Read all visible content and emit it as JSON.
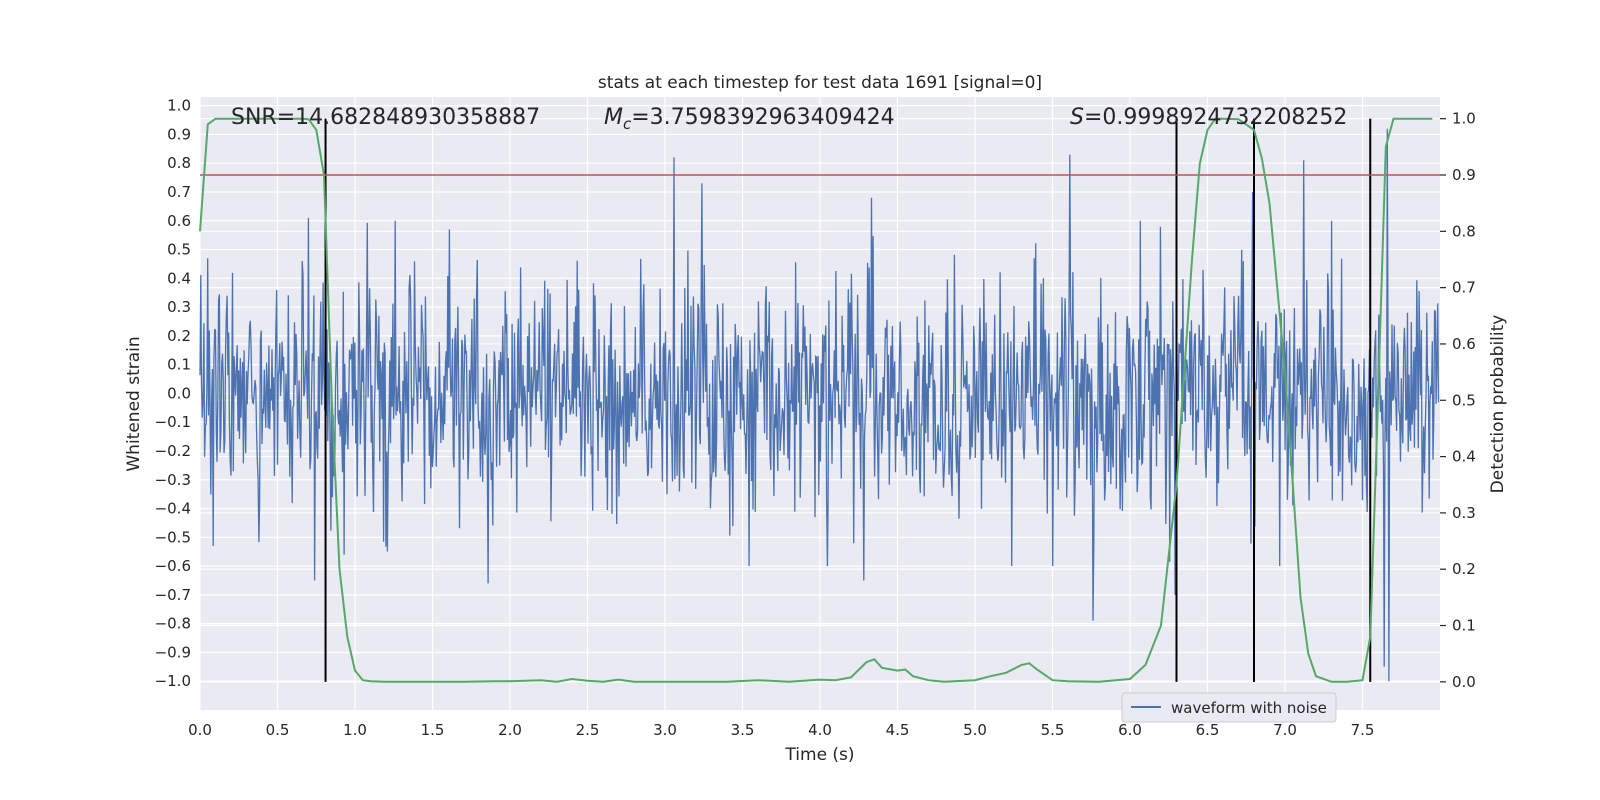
{
  "chart_data": {
    "type": "line",
    "title": "stats at each timestep for test data 1691 [signal=0]",
    "xlabel": "Time (s)",
    "ylabel_left": "Whitened strain",
    "ylabel_right": "Detection probability",
    "xlim": [
      0.0,
      8.0
    ],
    "ylim_left": [
      -1.1,
      1.03
    ],
    "ylim_right": [
      -0.05,
      1.0385
    ],
    "x_ticks": [
      "0.0",
      "0.5",
      "1.0",
      "1.5",
      "2.0",
      "2.5",
      "3.0",
      "3.5",
      "4.0",
      "4.5",
      "5.0",
      "5.5",
      "6.0",
      "6.5",
      "7.0",
      "7.5"
    ],
    "x_tick_values": [
      0.0,
      0.5,
      1.0,
      1.5,
      2.0,
      2.5,
      3.0,
      3.5,
      4.0,
      4.5,
      5.0,
      5.5,
      6.0,
      6.5,
      7.0,
      7.5
    ],
    "y_left_ticks": [
      "1.0",
      "0.9",
      "0.8",
      "0.7",
      "0.6",
      "0.5",
      "0.4",
      "0.3",
      "0.2",
      "0.1",
      "0.0",
      "−0.1",
      "−0.2",
      "−0.3",
      "−0.4",
      "−0.5",
      "−0.6",
      "−0.7",
      "−0.8",
      "−0.9",
      "−1.0"
    ],
    "y_left_tick_values": [
      1.0,
      0.9,
      0.8,
      0.7,
      0.6,
      0.5,
      0.4,
      0.3,
      0.2,
      0.1,
      0.0,
      -0.1,
      -0.2,
      -0.3,
      -0.4,
      -0.5,
      -0.6,
      -0.7,
      -0.8,
      -0.9,
      -1.0
    ],
    "y_right_ticks": [
      "1.0",
      "0.9",
      "0.8",
      "0.7",
      "0.6",
      "0.5",
      "0.4",
      "0.3",
      "0.2",
      "0.1",
      "0.0"
    ],
    "y_right_tick_values": [
      1.0,
      0.9,
      0.8,
      0.7,
      0.6,
      0.5,
      0.4,
      0.3,
      0.2,
      0.1,
      0.0
    ],
    "grid": true,
    "waveform": {
      "name": "waveform with noise",
      "color": "#4c72b0",
      "sample_count": 1600,
      "typical_amplitude": 0.35,
      "x_range": [
        0.0,
        7.99
      ],
      "peaks": [
        {
          "x": 0.05,
          "y": 0.47
        },
        {
          "x": 0.7,
          "y": 0.61
        },
        {
          "x": 0.74,
          "y": -0.65
        },
        {
          "x": 0.93,
          "y": -0.56
        },
        {
          "x": 1.61,
          "y": 0.57
        },
        {
          "x": 1.86,
          "y": -0.66
        },
        {
          "x": 3.06,
          "y": 0.82
        },
        {
          "x": 3.24,
          "y": 0.73
        },
        {
          "x": 4.33,
          "y": 0.68
        },
        {
          "x": 4.28,
          "y": -0.65
        },
        {
          "x": 5.61,
          "y": 0.83
        },
        {
          "x": 5.76,
          "y": -0.79
        },
        {
          "x": 6.29,
          "y": -0.7
        },
        {
          "x": 6.79,
          "y": 0.7
        },
        {
          "x": 7.12,
          "y": 0.81
        },
        {
          "x": 7.66,
          "y": 0.92
        },
        {
          "x": 7.64,
          "y": -0.95
        },
        {
          "x": 7.67,
          "y": -1.0
        }
      ]
    },
    "probability": {
      "color": "#55a868",
      "x": [
        0.0,
        0.05,
        0.1,
        0.2,
        0.3,
        0.4,
        0.5,
        0.6,
        0.65,
        0.7,
        0.75,
        0.8,
        0.85,
        0.9,
        0.95,
        1.0,
        1.05,
        1.1,
        1.2,
        1.3,
        1.5,
        1.7,
        1.9,
        2.0,
        2.2,
        2.3,
        2.4,
        2.5,
        2.6,
        2.7,
        2.8,
        2.9,
        3.0,
        3.2,
        3.4,
        3.6,
        3.8,
        4.0,
        4.1,
        4.2,
        4.3,
        4.35,
        4.4,
        4.5,
        4.55,
        4.6,
        4.7,
        4.8,
        5.0,
        5.1,
        5.2,
        5.3,
        5.35,
        5.4,
        5.5,
        5.6,
        5.8,
        6.0,
        6.1,
        6.2,
        6.3,
        6.4,
        6.45,
        6.5,
        6.55,
        6.6,
        6.7,
        6.8,
        6.85,
        6.9,
        7.0,
        7.05,
        7.1,
        7.15,
        7.2,
        7.3,
        7.4,
        7.5,
        7.55,
        7.6,
        7.65,
        7.7,
        7.8,
        7.95
      ],
      "y": [
        0.8,
        0.99,
        1.0,
        1.0,
        1.0,
        1.0,
        1.0,
        1.0,
        1.0,
        0.999,
        0.98,
        0.9,
        0.5,
        0.2,
        0.08,
        0.02,
        0.003,
        0.001,
        0.0,
        0.0,
        0.0,
        0.0,
        0.001,
        0.001,
        0.003,
        0.0,
        0.005,
        0.002,
        0.0,
        0.004,
        0.0,
        0.0,
        0.0,
        0.0,
        0.0,
        0.003,
        0.0,
        0.004,
        0.003,
        0.008,
        0.035,
        0.04,
        0.025,
        0.02,
        0.022,
        0.01,
        0.003,
        0.0,
        0.003,
        0.01,
        0.016,
        0.03,
        0.033,
        0.022,
        0.003,
        0.001,
        0.0,
        0.005,
        0.03,
        0.1,
        0.35,
        0.75,
        0.92,
        0.98,
        1.0,
        1.0,
        0.999,
        0.98,
        0.93,
        0.85,
        0.55,
        0.35,
        0.15,
        0.05,
        0.01,
        0.0,
        0.0,
        0.003,
        0.08,
        0.5,
        0.95,
        1.0,
        1.0,
        1.0
      ]
    },
    "threshold": {
      "value": 0.9,
      "color": "#c44e52"
    },
    "vlines": [
      0.81,
      6.3,
      6.8,
      7.55
    ],
    "vlines_color": "#000000",
    "annotations": {
      "snr_text": "SNR=14.682848930358887",
      "mc_symbol": "M",
      "mc_subscript": "c",
      "mc_text": "=3.7598392963409424",
      "s_symbol": "S",
      "s_text": "=0.9998924732208252"
    },
    "legend": {
      "entries": [
        "waveform with noise"
      ],
      "placement": "lower-right"
    },
    "colors": {
      "axes_bg": "#eaeaf2",
      "grid": "#ffffff",
      "text": "#262626"
    }
  }
}
